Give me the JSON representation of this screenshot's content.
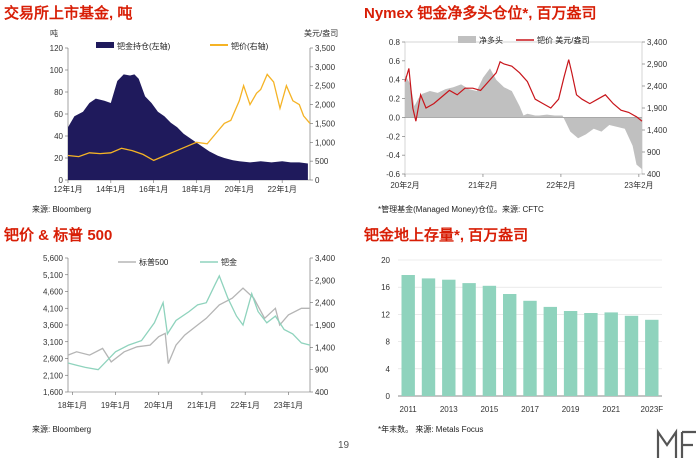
{
  "page_number": "19",
  "panels": {
    "etf": {
      "title": "交易所上市基金, 吨",
      "source": "来源: Bloomberg"
    },
    "nymex": {
      "title": "Nymex 钯金净多头仓位*, 百万盎司",
      "source": "*管理基金(Managed Money)仓位。来源: CFTC"
    },
    "sp": {
      "title": "钯价 & 标普 500",
      "source": "来源: Bloomberg"
    },
    "stocks": {
      "title": "钯金地上存量*, 百万盎司",
      "source": "*年末数。 来源: Metals Focus"
    }
  },
  "colors": {
    "navy": "#1f1a5c",
    "gold": "#f5b325",
    "gray": "#c0c0c0",
    "red": "#c8151b",
    "teal": "#8fd3bd",
    "sp_gray": "#b5b5b5"
  },
  "logo_text": "MF",
  "chart_data": [
    {
      "id": "etf",
      "type": "area",
      "left_unit": "吨",
      "right_unit": "美元/盎司",
      "x_ticks": [
        "12年1月",
        "14年1月",
        "16年1月",
        "18年1月",
        "20年1月",
        "22年1月"
      ],
      "x_range": [
        2012.0,
        2023.3
      ],
      "y_left_ticks": [
        "0",
        "20",
        "40",
        "60",
        "80",
        "100",
        "120"
      ],
      "ylim_left": [
        0,
        120
      ],
      "y_right_ticks": [
        "0",
        "500",
        "1,000",
        "1,500",
        "2,000",
        "2,500",
        "3,000",
        "3,500"
      ],
      "ylim_right": [
        0,
        3500
      ],
      "legend": "top",
      "series": [
        {
          "name": "钯金持仓(左轴)",
          "type": "area",
          "axis": "left",
          "x": [
            2012.0,
            2012.3,
            2012.7,
            2013.0,
            2013.3,
            2013.7,
            2014.0,
            2014.3,
            2014.6,
            2014.9,
            2015.1,
            2015.3,
            2015.6,
            2015.9,
            2016.2,
            2016.5,
            2016.8,
            2017.1,
            2017.4,
            2017.7,
            2018.0,
            2018.3,
            2018.6,
            2019.0,
            2019.3,
            2019.7,
            2020.0,
            2020.5,
            2021.0,
            2021.5,
            2022.0,
            2022.4,
            2022.8,
            2023.2
          ],
          "y": [
            48,
            58,
            62,
            70,
            74,
            72,
            70,
            90,
            96,
            95,
            96,
            92,
            76,
            70,
            62,
            58,
            52,
            48,
            42,
            38,
            34,
            30,
            26,
            22,
            20,
            18,
            17,
            16,
            17,
            16,
            17,
            16,
            16,
            15
          ]
        },
        {
          "name": "钯价(右轴)",
          "type": "line",
          "axis": "right",
          "x": [
            2012.0,
            2012.5,
            2013.0,
            2013.5,
            2014.0,
            2014.5,
            2015.0,
            2015.5,
            2016.0,
            2016.5,
            2017.0,
            2017.5,
            2018.0,
            2018.5,
            2019.0,
            2019.3,
            2019.6,
            2020.0,
            2020.2,
            2020.5,
            2020.8,
            2021.0,
            2021.3,
            2021.6,
            2021.9,
            2022.2,
            2022.5,
            2022.8,
            2023.0,
            2023.3
          ],
          "y": [
            650,
            620,
            720,
            700,
            720,
            840,
            780,
            680,
            520,
            640,
            760,
            880,
            1000,
            960,
            1300,
            1500,
            1580,
            2100,
            2500,
            2000,
            2300,
            2400,
            2800,
            2600,
            1900,
            2500,
            2100,
            2000,
            1700,
            1500
          ]
        }
      ]
    },
    {
      "id": "nymex",
      "type": "area",
      "x_ticks": [
        "20年2月",
        "21年2月",
        "22年2月",
        "23年2月"
      ],
      "x_range": [
        2020.08,
        2023.12
      ],
      "y_left_ticks": [
        "-0.6",
        "-0.4",
        "-0.2",
        "0.0",
        "0.2",
        "0.4",
        "0.6",
        "0.8"
      ],
      "ylim_left": [
        -0.6,
        0.8
      ],
      "y_right_ticks": [
        "400",
        "900",
        "1,400",
        "1,900",
        "2,400",
        "2,900",
        "3,400"
      ],
      "ylim_right": [
        400,
        3400
      ],
      "legend": "top",
      "series": [
        {
          "name": "净多头",
          "type": "area",
          "axis": "left",
          "x": [
            2020.08,
            2020.15,
            2020.2,
            2020.25,
            2020.3,
            2020.4,
            2020.5,
            2020.6,
            2020.7,
            2020.8,
            2020.9,
            2021.0,
            2021.08,
            2021.17,
            2021.25,
            2021.35,
            2021.45,
            2021.55,
            2021.6,
            2021.65,
            2021.7,
            2021.75,
            2021.8,
            2021.9,
            2022.0,
            2022.1,
            2022.2,
            2022.3,
            2022.4,
            2022.5,
            2022.6,
            2022.7,
            2022.8,
            2022.9,
            2023.0,
            2023.05,
            2023.12
          ],
          "y": [
            0.45,
            0.35,
            0.12,
            0.2,
            0.25,
            0.28,
            0.26,
            0.3,
            0.32,
            0.35,
            0.3,
            0.28,
            0.42,
            0.52,
            0.4,
            0.32,
            0.28,
            0.12,
            0.02,
            0.04,
            0.03,
            0.02,
            0.02,
            0.03,
            0.02,
            0.02,
            -0.15,
            -0.22,
            -0.18,
            -0.12,
            -0.15,
            -0.08,
            -0.1,
            -0.12,
            -0.3,
            -0.5,
            -0.55
          ]
        },
        {
          "name": "钯价 美元/盎司",
          "type": "line",
          "axis": "right",
          "x": [
            2020.08,
            2020.13,
            2020.18,
            2020.22,
            2020.28,
            2020.35,
            2020.45,
            2020.55,
            2020.65,
            2020.75,
            2020.85,
            2020.95,
            2021.05,
            2021.15,
            2021.25,
            2021.3,
            2021.35,
            2021.45,
            2021.55,
            2021.65,
            2021.75,
            2021.85,
            2021.95,
            2022.05,
            2022.12,
            2022.18,
            2022.22,
            2022.28,
            2022.35,
            2022.45,
            2022.55,
            2022.65,
            2022.75,
            2022.85,
            2022.95,
            2023.05,
            2023.12
          ],
          "y": [
            2500,
            2800,
            1900,
            1600,
            2200,
            1900,
            2000,
            2150,
            2300,
            2200,
            2350,
            2350,
            2300,
            2500,
            2700,
            2950,
            2900,
            2850,
            2700,
            2500,
            2100,
            2000,
            1900,
            2100,
            2600,
            3000,
            2700,
            2200,
            2100,
            2000,
            2100,
            2200,
            2000,
            1850,
            1800,
            1700,
            1600
          ]
        }
      ]
    },
    {
      "id": "sp",
      "type": "line",
      "x_ticks": [
        "18年1月",
        "19年1月",
        "20年1月",
        "21年1月",
        "22年1月",
        "23年1月"
      ],
      "x_range": [
        2017.9,
        2023.5
      ],
      "y_left_ticks": [
        "1,600",
        "2,100",
        "2,600",
        "3,100",
        "3,600",
        "4,100",
        "4,600",
        "5,100",
        "5,600"
      ],
      "ylim_left": [
        1600,
        5600
      ],
      "y_right_ticks": [
        "400",
        "900",
        "1,400",
        "1,900",
        "2,400",
        "2,900",
        "3,400"
      ],
      "ylim_right": [
        400,
        3400
      ],
      "legend": "top",
      "series": [
        {
          "name": "标普500",
          "type": "line",
          "axis": "left",
          "x": [
            2017.9,
            2018.1,
            2018.4,
            2018.7,
            2018.9,
            2019.2,
            2019.5,
            2019.8,
            2020.0,
            2020.15,
            2020.22,
            2020.4,
            2020.6,
            2020.9,
            2021.1,
            2021.4,
            2021.7,
            2021.95,
            2022.2,
            2022.45,
            2022.7,
            2022.8,
            2023.0,
            2023.3,
            2023.5
          ],
          "y": [
            2700,
            2800,
            2700,
            2900,
            2500,
            2800,
            2950,
            3000,
            3250,
            3350,
            2450,
            3000,
            3300,
            3600,
            3800,
            4200,
            4400,
            4700,
            4400,
            3800,
            4100,
            3600,
            3900,
            4100,
            4100
          ]
        },
        {
          "name": "钯金",
          "type": "line",
          "axis": "right",
          "x": [
            2017.9,
            2018.1,
            2018.3,
            2018.6,
            2018.8,
            2019.0,
            2019.3,
            2019.6,
            2019.9,
            2020.1,
            2020.2,
            2020.4,
            2020.7,
            2020.9,
            2021.1,
            2021.3,
            2021.4,
            2021.6,
            2021.8,
            2021.95,
            2022.15,
            2022.3,
            2022.5,
            2022.7,
            2022.9,
            2023.1,
            2023.3,
            2023.5
          ],
          "y": [
            1050,
            1000,
            950,
            900,
            1100,
            1300,
            1450,
            1550,
            1950,
            2400,
            1700,
            2000,
            2200,
            2350,
            2400,
            2800,
            3000,
            2500,
            2100,
            1900,
            2600,
            2200,
            1950,
            2100,
            1800,
            1700,
            1500,
            1450
          ]
        }
      ]
    },
    {
      "id": "stocks",
      "type": "bar",
      "categories": [
        "2011",
        "2012",
        "2013",
        "2014",
        "2015",
        "2016",
        "2017",
        "2018",
        "2019",
        "2020",
        "2021",
        "2022",
        "2023F"
      ],
      "x_tick_labels": [
        "2011",
        "2013",
        "2015",
        "2017",
        "2019",
        "2021",
        "2023F"
      ],
      "values": [
        17.8,
        17.3,
        17.1,
        16.6,
        16.2,
        15.0,
        14.0,
        13.1,
        12.5,
        12.2,
        12.3,
        11.8,
        11.2
      ],
      "y_ticks": [
        "0",
        "4",
        "8",
        "12",
        "16",
        "20"
      ],
      "ylim": [
        0,
        20
      ],
      "grid": true
    }
  ]
}
